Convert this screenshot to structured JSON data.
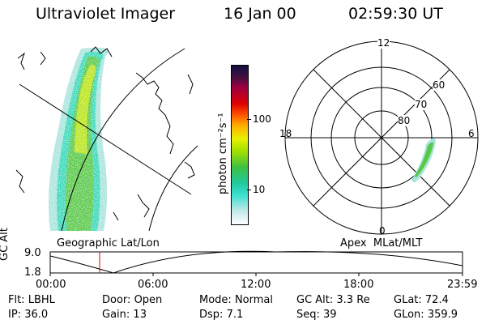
{
  "header": {
    "instrument": "Ultraviolet Imager",
    "date": "16 Jan 00",
    "time": "02:59:30 UT"
  },
  "colorbar": {
    "unit_label": "photon cm⁻²s⁻¹",
    "ticks": [
      "100",
      "10"
    ],
    "colors": [
      "#ffffff",
      "#c8e8e8",
      "#40e0d0",
      "#20c8a0",
      "#40c040",
      "#a0e000",
      "#e8f000",
      "#ffb000",
      "#ff6000",
      "#e00000",
      "#a00040",
      "#401040",
      "#101040"
    ]
  },
  "map": {
    "label": "Geographic Lat/Lon"
  },
  "polar": {
    "label": "Apex  MLat/MLT",
    "mlt_labels": [
      "12",
      "18",
      "6",
      "0"
    ],
    "lat_labels": [
      "60",
      "70",
      "80"
    ]
  },
  "altitude_plot": {
    "ylabel": "GC Alt",
    "y_ticks": [
      "9.0",
      "1.8"
    ],
    "x_ticks": [
      "00:00",
      "06:00",
      "12:00",
      "18:00",
      "23:59"
    ]
  },
  "footer": {
    "row1": [
      {
        "label": "Flt:",
        "value": "LBHL"
      },
      {
        "label": "Door:",
        "value": "Open"
      },
      {
        "label": "Mode:",
        "value": "Normal"
      },
      {
        "label": "GC Alt:",
        "value": "3.3 Re"
      },
      {
        "label": "GLat:",
        "value": "72.4"
      }
    ],
    "row2": [
      {
        "label": "IP:",
        "value": "36.0"
      },
      {
        "label": "Gain:",
        "value": "13"
      },
      {
        "label": "Dsp:",
        "value": "7.1"
      },
      {
        "label": "Seq:",
        "value": "39"
      },
      {
        "label": "GLon:",
        "value": "359.9"
      }
    ]
  }
}
